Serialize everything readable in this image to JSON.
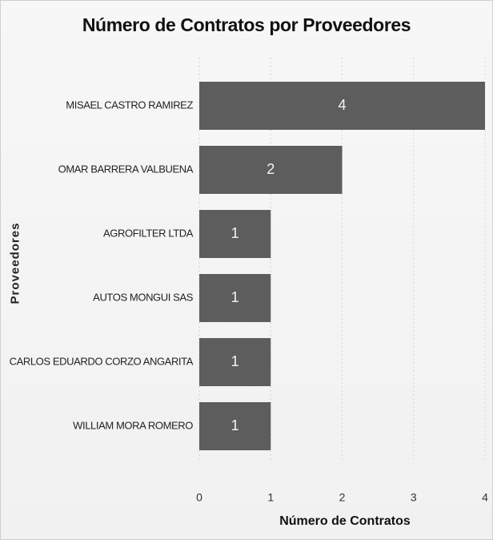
{
  "chart_data": {
    "type": "bar",
    "orientation": "horizontal",
    "title": "Número de Contratos por Proveedores",
    "xlabel": "Número de Contratos",
    "ylabel": "Proveedores",
    "categories": [
      "MISAEL CASTRO RAMIREZ",
      "OMAR BARRERA VALBUENA",
      "AGROFILTER LTDA",
      "AUTOS MONGUI SAS",
      "CARLOS EDUARDO CORZO ANGARITA",
      "WILLIAM MORA ROMERO"
    ],
    "values": [
      4,
      2,
      1,
      1,
      1,
      1
    ],
    "data_labels": [
      "4",
      "2",
      "1",
      "1",
      "1",
      "1"
    ],
    "xlim": [
      0,
      4
    ],
    "xticks": [
      0,
      1,
      2,
      3,
      4
    ],
    "xtick_labels": [
      "0",
      "1",
      "2",
      "3",
      "4"
    ],
    "grid": true,
    "colors": {
      "bar": "#5d5d5d",
      "data_label": "#f4f4f4",
      "grid": "#d5d5d5"
    }
  }
}
